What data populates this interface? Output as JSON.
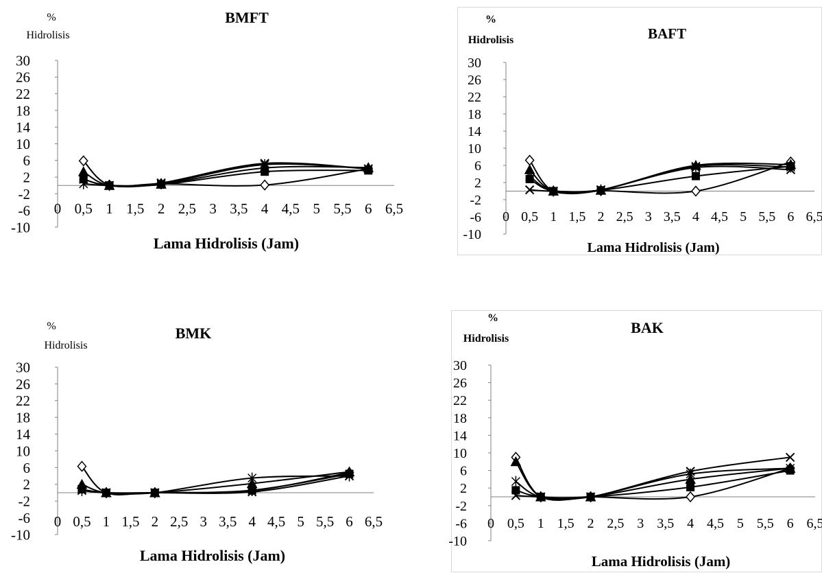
{
  "chart_data": [
    {
      "type": "line",
      "title": "BMFT",
      "ylabel_line1": "%",
      "ylabel_line2": "Hidrolisis",
      "xlabel": "Lama Hidrolisis (Jam)",
      "x_ticks": [
        "0",
        "0,5",
        "1",
        "1,5",
        "2",
        "2,5",
        "3",
        "3,5",
        "4",
        "4,5",
        "5",
        "5,5",
        "6",
        "6,5"
      ],
      "y_ticks": [
        "30",
        "26",
        "22",
        "18",
        "14",
        "10",
        "6",
        "2",
        "-2",
        "-6",
        "-10"
      ],
      "xlim": [
        0,
        6.5
      ],
      "ylim": [
        -10,
        30
      ],
      "x": [
        0.5,
        1,
        2,
        4,
        6
      ],
      "series": [
        {
          "marker": "diamond",
          "values": [
            5.9,
            0.1,
            0.4,
            0.1,
            4.0
          ]
        },
        {
          "marker": "triangle",
          "values": [
            3.3,
            0.0,
            0.3,
            4.2,
            4.3
          ]
        },
        {
          "marker": "x",
          "values": [
            1.5,
            0.0,
            0.6,
            5.3,
            4.0
          ]
        },
        {
          "marker": "star",
          "values": [
            0.4,
            0.0,
            0.4,
            5.0,
            4.0
          ]
        },
        {
          "marker": "square",
          "values": [
            1.5,
            0.0,
            0.2,
            3.3,
            3.6
          ]
        }
      ],
      "frame": false
    },
    {
      "type": "line",
      "title": "BAFT",
      "ylabel_line1": "%",
      "ylabel_line2": "Hidrolisis",
      "xlabel": "Lama Hidrolisis (Jam)",
      "x_ticks": [
        "0",
        "0,5",
        "1",
        "1,5",
        "2",
        "2,5",
        "3",
        "3,5",
        "4",
        "4,5",
        "5",
        "5,5",
        "6",
        "6,5"
      ],
      "y_ticks": [
        "30",
        "26",
        "22",
        "18",
        "14",
        "10",
        "6",
        "2",
        "-2",
        "-6",
        "-10"
      ],
      "xlim": [
        0,
        6.5
      ],
      "ylim": [
        -10,
        30
      ],
      "x": [
        0.5,
        1,
        2,
        4,
        6
      ],
      "series": [
        {
          "marker": "diamond",
          "values": [
            7.2,
            0.0,
            0.1,
            0.0,
            6.8
          ]
        },
        {
          "marker": "triangle",
          "values": [
            5.0,
            0.0,
            0.2,
            6.0,
            6.2
          ]
        },
        {
          "marker": "x",
          "values": [
            0.3,
            0.0,
            0.3,
            5.5,
            5.0
          ]
        },
        {
          "marker": "star",
          "values": [
            3.5,
            0.0,
            0.3,
            5.8,
            5.6
          ]
        },
        {
          "marker": "square",
          "values": [
            2.8,
            0.0,
            0.2,
            3.5,
            5.8
          ]
        }
      ],
      "frame": true
    },
    {
      "type": "line",
      "title": "BMK",
      "ylabel_line1": "%",
      "ylabel_line2": "Hidrolisis",
      "xlabel": "Lama Hidrolisis (Jam)",
      "x_ticks": [
        "0",
        "0,5",
        "1",
        "1,5",
        "2",
        "2,5",
        "3",
        "3,5",
        "4",
        "4,5",
        "5",
        "5,5",
        "6",
        "6,5"
      ],
      "y_ticks": [
        "30",
        "26",
        "22",
        "18",
        "14",
        "10",
        "6",
        "2",
        "-2",
        "-6",
        "-10"
      ],
      "xlim": [
        0,
        6.5
      ],
      "ylim": [
        -10,
        30
      ],
      "x": [
        0.5,
        1,
        2,
        4,
        6
      ],
      "series": [
        {
          "marker": "diamond",
          "values": [
            6.3,
            0.0,
            0.0,
            0.5,
            4.8
          ]
        },
        {
          "marker": "triangle",
          "values": [
            2.0,
            0.0,
            0.0,
            2.2,
            5.0
          ]
        },
        {
          "marker": "x",
          "values": [
            0.8,
            0.0,
            0.0,
            0.2,
            4.0
          ]
        },
        {
          "marker": "star",
          "values": [
            0.5,
            0.0,
            0.0,
            3.5,
            4.0
          ]
        },
        {
          "marker": "square",
          "values": [
            0.8,
            0.0,
            0.0,
            0.6,
            4.5
          ]
        }
      ],
      "frame": false
    },
    {
      "type": "line",
      "title": "BAK",
      "ylabel_line1": "%",
      "ylabel_line2": "Hidrolisis",
      "xlabel": "Lama Hidrolisis (Jam)",
      "x_ticks": [
        "0",
        "0,5",
        "1",
        "1,5",
        "2",
        "2,5",
        "3",
        "3,5",
        "4",
        "4,5",
        "5",
        "5,5",
        "6",
        "6,5"
      ],
      "y_ticks": [
        "30",
        "26",
        "22",
        "18",
        "14",
        "10",
        "6",
        "2",
        "-2",
        "-6",
        "-10"
      ],
      "xlim": [
        0,
        6.5
      ],
      "ylim": [
        -10,
        30
      ],
      "x": [
        0.5,
        1,
        2,
        4,
        6
      ],
      "series": [
        {
          "marker": "diamond",
          "values": [
            9.0,
            0.0,
            0.0,
            0.0,
            6.5
          ]
        },
        {
          "marker": "triangle",
          "values": [
            8.0,
            0.0,
            0.0,
            4.0,
            6.5
          ]
        },
        {
          "marker": "x",
          "values": [
            0.3,
            0.0,
            0.0,
            5.8,
            9.0
          ]
        },
        {
          "marker": "star",
          "values": [
            3.5,
            0.0,
            0.0,
            5.2,
            6.5
          ]
        },
        {
          "marker": "square",
          "values": [
            1.5,
            0.0,
            0.0,
            2.2,
            6.0
          ]
        }
      ],
      "frame": true
    }
  ]
}
